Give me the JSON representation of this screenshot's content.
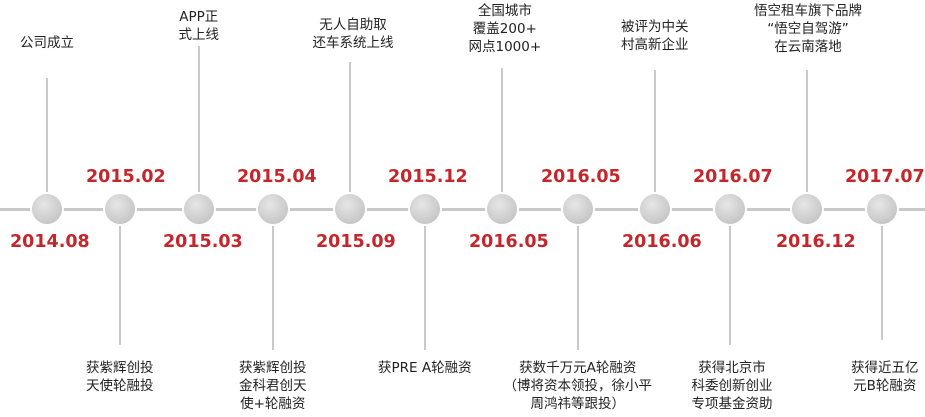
{
  "timeline": {
    "line_color": "#c9c9c9",
    "date_color": "#c3262b",
    "events": [
      {
        "date": "2014.08",
        "desc": [
          "公司成立"
        ]
      },
      {
        "date": "2015.02",
        "desc": [
          "获紫辉创投",
          "天使轮融投"
        ]
      },
      {
        "date": "2015.03",
        "desc": [
          "APP正",
          "式上线"
        ]
      },
      {
        "date": "2015.04",
        "desc": [
          "获紫辉创投",
          "金科君创天",
          "使+轮融资"
        ]
      },
      {
        "date": "2015.09",
        "desc": [
          "无人自助取",
          "还车系统上线"
        ]
      },
      {
        "date": "2015.12",
        "desc": [
          "获PRE A轮融资"
        ]
      },
      {
        "date": "2016.05",
        "desc": [
          "全国城市",
          "覆盖200+",
          "网点1000+"
        ]
      },
      {
        "date": "2016.05",
        "desc": [
          "获数千万元A轮融资",
          "（博将资本领投，徐小平",
          "周鸿祎等跟投）"
        ]
      },
      {
        "date": "2016.06",
        "desc": [
          "被评为中关",
          "村高新企业"
        ]
      },
      {
        "date": "2016.07",
        "desc": [
          "获得北京市",
          "科委创新创业",
          "专项基金资助"
        ]
      },
      {
        "date": "2016.12",
        "desc": [
          "悟空租车旗下品牌",
          "“悟空自驾游”",
          "在云南落地"
        ]
      },
      {
        "date": "2017.07",
        "desc": [
          "获得近五亿",
          "元B轮融资"
        ]
      }
    ]
  }
}
